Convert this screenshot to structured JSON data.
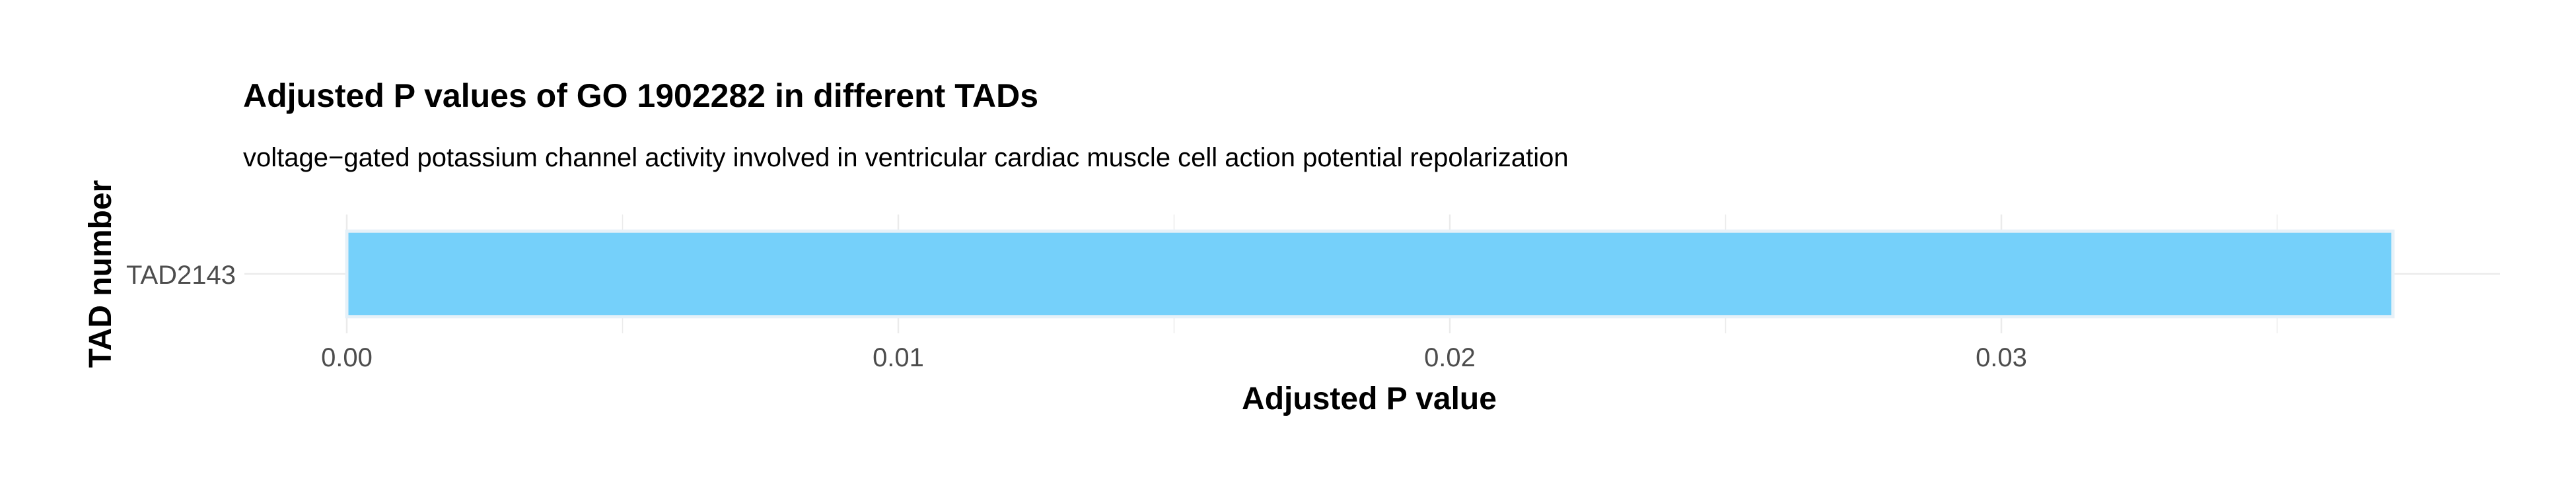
{
  "chart_data": {
    "type": "bar",
    "orientation": "horizontal",
    "title": "Adjusted P values of GO 1902282 in different TADs",
    "subtitle": "voltage−gated potassium channel activity involved in ventricular cardiac muscle cell action potential repolarization",
    "xlabel": "Adjusted P value",
    "ylabel": "TAD number",
    "categories": [
      "TAD2143"
    ],
    "values": [
      0.0371
    ],
    "xlim": [
      0,
      0.039
    ],
    "x_ticks": [
      0,
      0.01,
      0.02,
      0.03
    ],
    "x_tick_labels": [
      "0.00",
      "0.01",
      "0.02",
      "0.03"
    ],
    "grid": true,
    "legend": "none",
    "bar_color": "#75D0FA",
    "bar_outline_color": "#E6F1F8",
    "grid_color": "#EBEBEB"
  }
}
